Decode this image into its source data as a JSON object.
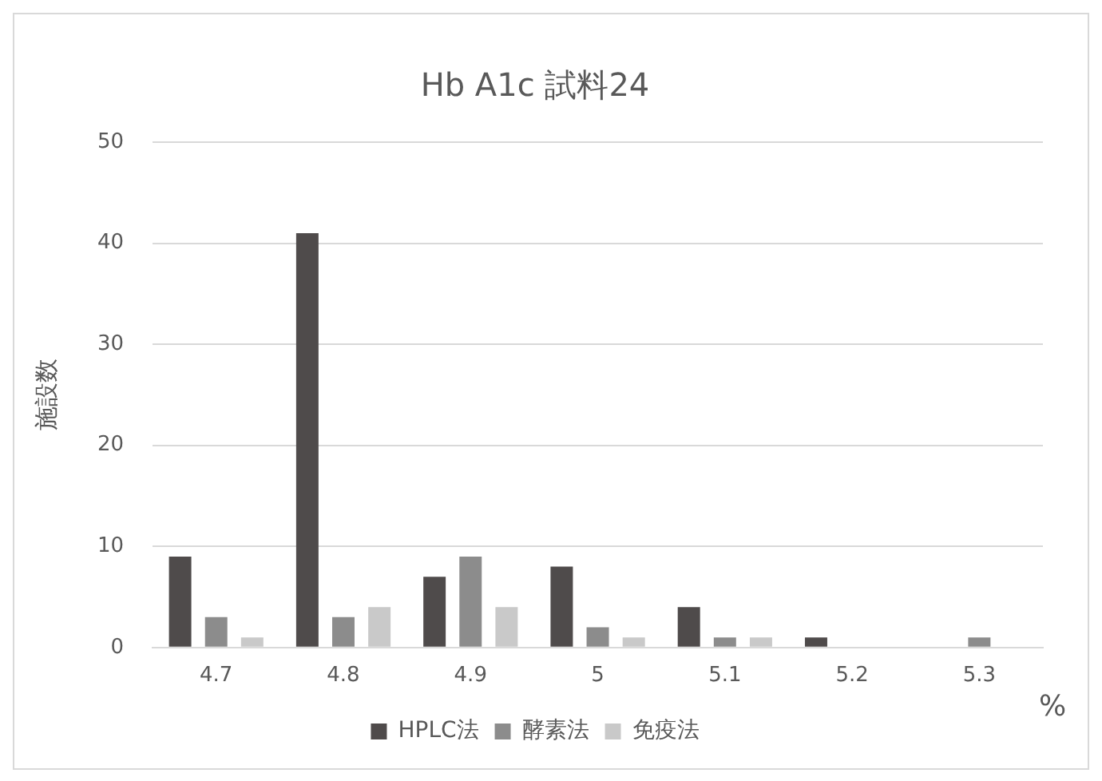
{
  "chart_data": {
    "type": "bar",
    "title": "Hb A1c 試料24",
    "xlabel": "%",
    "ylabel": "施設数",
    "categories": [
      "4.7",
      "4.8",
      "4.9",
      "5",
      "5.1",
      "5.2",
      "5.3"
    ],
    "series": [
      {
        "name": "HPLC法",
        "color": "#4f4b4b",
        "values": [
          9,
          41,
          7,
          8,
          4,
          1,
          0
        ]
      },
      {
        "name": "酵素法",
        "color": "#8c8c8c",
        "values": [
          3,
          3,
          9,
          2,
          1,
          0,
          1
        ]
      },
      {
        "name": "免疫法",
        "color": "#c9c9c9",
        "values": [
          1,
          4,
          4,
          1,
          1,
          0,
          0
        ]
      }
    ],
    "ylim": [
      0,
      50
    ],
    "yticks": [
      0,
      10,
      20,
      30,
      40,
      50
    ],
    "grid": "y",
    "legend": "bottom"
  }
}
